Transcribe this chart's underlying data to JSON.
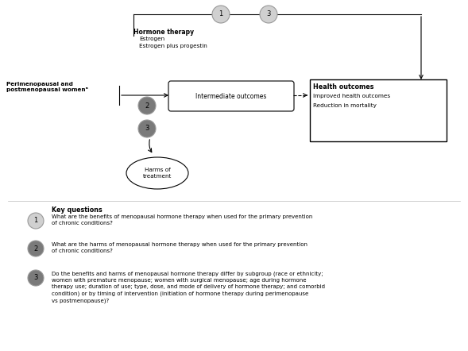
{
  "fig_width": 5.89,
  "fig_height": 4.42,
  "dpi": 100,
  "bg_color": "#ffffff",
  "kq_circle_light": "#d0d0d0",
  "kq_circle_dark": "#7a7a7a",
  "kq_circle_edge": "#999999",
  "box_edge_color": "#000000",
  "text_color": "#000000",
  "population_text": "Perimenopausal and\npostmenopausal womenᵃ",
  "intervention_title": "Hormone therapy",
  "intervention_lines": [
    "Estrogen",
    "Estrogen plus progestin"
  ],
  "intermediate_text": "Intermediate outcomes",
  "health_title": "Health outcomes",
  "health_lines": [
    "Improved health outcomes",
    "Reduction in mortality"
  ],
  "harms_text": "Harms of\ntreatment",
  "kq_label": "Key questions",
  "kq1_text": "What are the benefits of menopausal hormone therapy when used for the primary prevention\nof chronic conditions?",
  "kq2_text": "What are the harms of menopausal hormone therapy when used for the primary prevention\nof chronic conditions?",
  "kq3_text": "Do the benefits and harms of menopausal hormone therapy differ by subgroup (race or ethnicity;\nwomen with premature menopause; women with surgical menopause; age during hormone\ntherapy use; duration of use; type, dose, and mode of delivery of hormone therapy; and comorbid\ncondition) or by timing of intervention (initiation of hormone therapy during perimenopause\nvs postmenopause)?"
}
